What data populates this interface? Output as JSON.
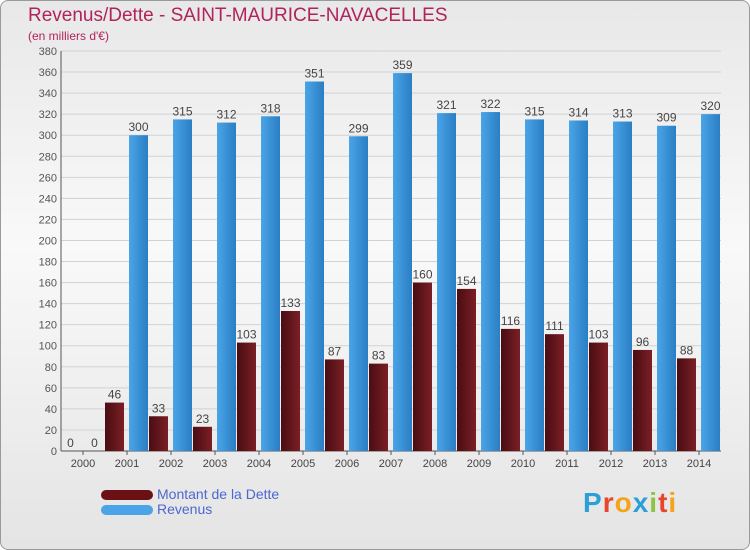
{
  "title": "Revenus/Dette - SAINT-MAURICE-NAVACELLES",
  "subtitle": "(en milliers d'€)",
  "logo": [
    "P",
    "r",
    "o",
    "x",
    "i",
    "t",
    "i"
  ],
  "logo_colors": [
    "#2aa0d8",
    "#e8452e",
    "#f4a31b",
    "#2aa0d8",
    "#8cc63f",
    "#e8452e",
    "#f4a31b"
  ],
  "colors": {
    "debt": "#7a1f24",
    "debt_dark": "#4a0d12",
    "revenue": "#4ba4e8",
    "revenue_dark": "#2a7ec4",
    "title": "#b1235a",
    "legend_text": "#4c68cf"
  },
  "legend": [
    {
      "label": "Montant de la Dette",
      "color": "#6b1015"
    },
    {
      "label": "Revenus",
      "color": "#4ba4e8"
    }
  ],
  "chart_data": {
    "type": "bar",
    "categories": [
      "2000",
      "2001",
      "2002",
      "2003",
      "2004",
      "2005",
      "2006",
      "2007",
      "2008",
      "2009",
      "2010",
      "2011",
      "2012",
      "2013",
      "2014"
    ],
    "series": [
      {
        "name": "Montant de la Dette",
        "values": [
          0,
          46,
          33,
          23,
          103,
          133,
          87,
          83,
          160,
          154,
          116,
          111,
          103,
          96,
          88
        ]
      },
      {
        "name": "Revenus",
        "values": [
          0,
          300,
          315,
          312,
          318,
          351,
          299,
          359,
          321,
          322,
          315,
          314,
          313,
          309,
          320
        ]
      }
    ],
    "y_ticks": [
      "0",
      "20",
      "40",
      "60",
      "80",
      "100",
      "120",
      "140",
      "160",
      "180",
      "200",
      "220",
      "240",
      "260",
      "280",
      "300",
      "320",
      "340",
      "360",
      "380"
    ],
    "ylim": [
      0,
      380
    ],
    "grid": true,
    "legend_position": "bottom-left"
  }
}
